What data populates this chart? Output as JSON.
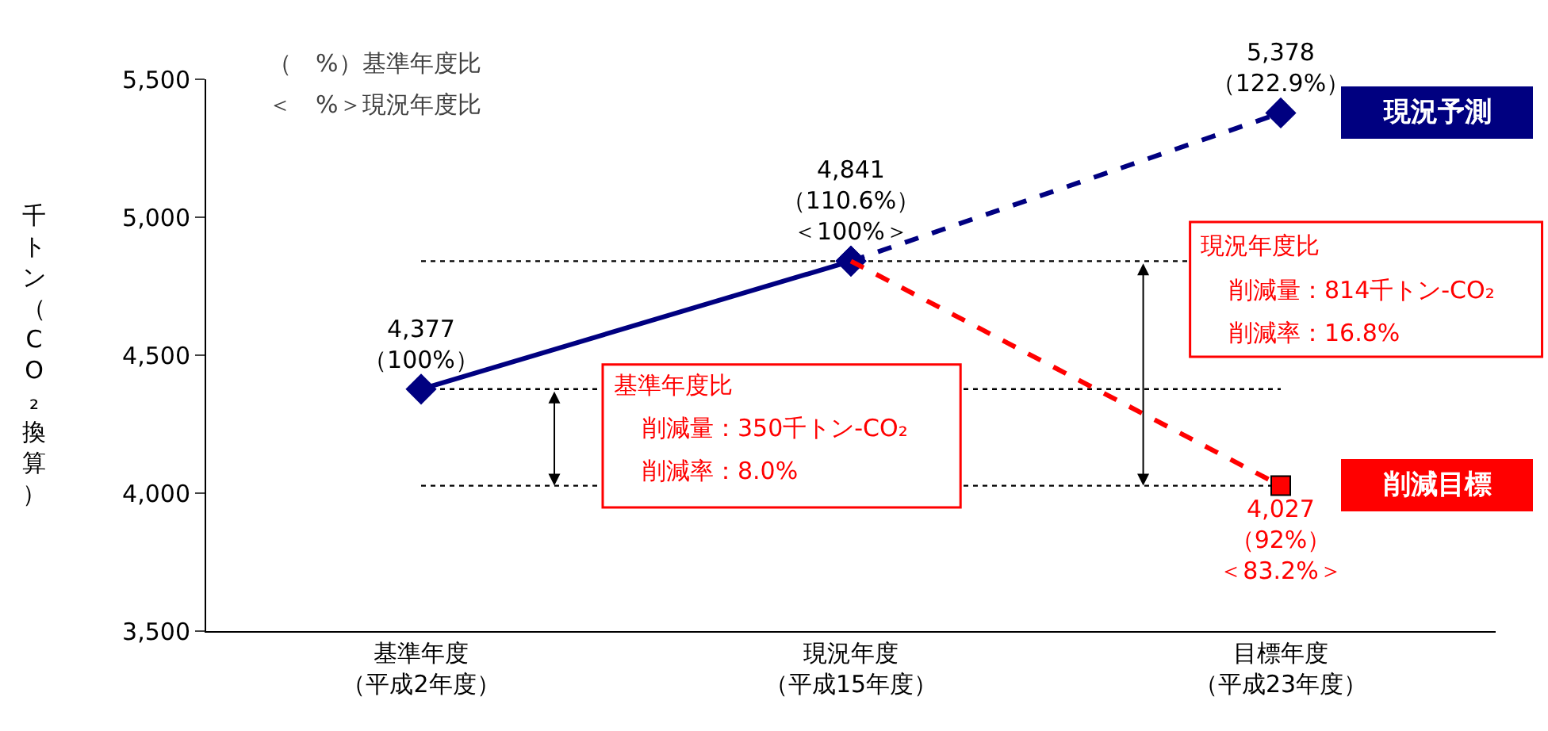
{
  "chart_data": {
    "type": "line",
    "ylabel": "千トン（CO₂換算）",
    "categories": [
      "基準年度（平成2年度）",
      "現況年度（平成15年度）",
      "目標年度（平成23年度）"
    ],
    "ylim": [
      3500,
      5500
    ],
    "yticks": [
      {
        "value": 3500,
        "label": "3,500"
      },
      {
        "value": 4000,
        "label": "4,000"
      },
      {
        "value": 4500,
        "label": "4,500"
      },
      {
        "value": 5000,
        "label": "5,000"
      },
      {
        "value": 5500,
        "label": "5,500"
      }
    ],
    "grid": false,
    "legend": false,
    "series": [
      {
        "type": "line",
        "color": "#000080",
        "marker": "diamond",
        "line_style": "solid",
        "values": [
          4377,
          4841,
          null
        ],
        "value_labels": [
          "4,377（100%）",
          "4,841（110.6%）＜100%＞",
          null
        ]
      },
      {
        "type": "line",
        "name": "現況予測",
        "color": "#000080",
        "marker": "diamond",
        "line_style": "dashed",
        "values": [
          null,
          4841,
          5378
        ],
        "value_labels": [
          null,
          null,
          "5,378（122.9%）"
        ]
      },
      {
        "type": "line",
        "name": "削減目標",
        "color": "#ff0000",
        "marker": "none",
        "line_style": "dashed",
        "values": [
          null,
          4841,
          4027
        ]
      },
      {
        "type": "scatter",
        "color": "#ff0000",
        "marker": "square",
        "values": [
          null,
          null,
          4027
        ],
        "value_labels": [
          null,
          null,
          "4,027（92%）＜83.2%＞"
        ]
      }
    ],
    "ref_lines": [
      {
        "axis": "y",
        "value": 4377,
        "line_style": "dotted",
        "color": "#000000"
      },
      {
        "axis": "y",
        "value": 4841,
        "line_style": "dotted",
        "color": "#000000"
      },
      {
        "axis": "y",
        "value": 4027,
        "line_style": "dotted",
        "color": "#000000"
      }
    ],
    "annotations": [
      "（　%）基準年度比",
      "＜　%＞現況年度比",
      "基準年度比",
      "削減量：350千トン‐CO₂",
      "削減率：8.0%",
      "現況年度比",
      "削減量：814千トン‐CO₂",
      "削減率：16.8%"
    ]
  }
}
